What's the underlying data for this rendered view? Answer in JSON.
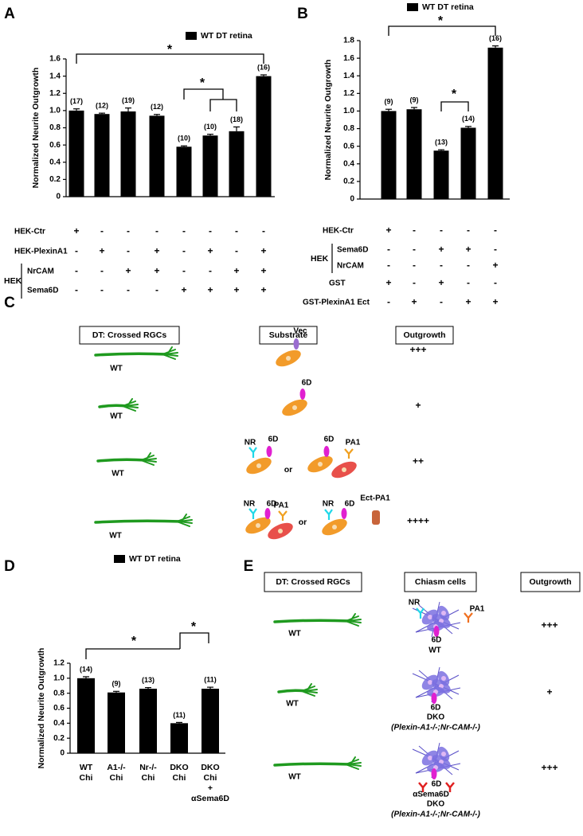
{
  "chart_data": [
    {
      "type": "bar",
      "panel_label": "A",
      "ylabel": "Normalized Neurite Outgrowth",
      "series": [
        {
          "name": "WT DT retina",
          "color": "#000000",
          "values": [
            1.0,
            0.96,
            0.99,
            0.94,
            0.58,
            0.71,
            0.76,
            1.4
          ],
          "errors": [
            0.02,
            0.01,
            0.04,
            0.015,
            0.01,
            0.015,
            0.05,
            0.015
          ]
        }
      ],
      "n_labels": [
        "(17)",
        "(12)",
        "(19)",
        "(12)",
        "(10)",
        "(10)",
        "(18)",
        "(16)"
      ],
      "ylim": [
        0,
        1.6
      ],
      "yticks": [
        0,
        0.2,
        0.4,
        0.6,
        0.8,
        {
          "value": 1,
          "label": "1.0"
        },
        1.2,
        1.4,
        1.6
      ],
      "annotations": [
        "*",
        "*"
      ],
      "condition_rows": [
        {
          "label": "HEK-Ctr",
          "marks": [
            "+",
            "-",
            "-",
            "-",
            "-",
            "-",
            "-",
            "-"
          ]
        },
        {
          "label": "HEK-PlexinA1",
          "marks": [
            "-",
            "+",
            "-",
            "+",
            "-",
            "+",
            "-",
            "+"
          ]
        },
        {
          "label": "NrCAM",
          "marks": [
            "-",
            "-",
            "+",
            "+",
            "-",
            "-",
            "+",
            "+"
          ]
        },
        {
          "label": "Sema6D",
          "marks": [
            "-",
            "-",
            "-",
            "-",
            "+",
            "+",
            "+",
            "+"
          ]
        }
      ],
      "group_label": "HEK"
    },
    {
      "type": "bar",
      "panel_label": "B",
      "ylabel": "Normalized Neurite Outgrowth",
      "series": [
        {
          "name": "WT DT retina",
          "color": "#000000",
          "values": [
            1.0,
            1.02,
            0.55,
            0.81,
            1.72
          ],
          "errors": [
            0.02,
            0.02,
            0.01,
            0.015,
            0.02
          ]
        }
      ],
      "n_labels": [
        "(9)",
        "(9)",
        "(13)",
        "(14)",
        "(16)"
      ],
      "ylim": [
        0,
        1.8
      ],
      "yticks": [
        0,
        0.2,
        0.4,
        0.6,
        0.8,
        {
          "value": 1,
          "label": "1.0"
        },
        1.2,
        1.4,
        1.6,
        1.8
      ],
      "annotations": [
        "*",
        "*"
      ],
      "condition_rows": [
        {
          "label": "HEK-Ctr",
          "marks": [
            "+",
            "-",
            "-",
            "-",
            "-"
          ]
        },
        {
          "label": "Sema6D",
          "marks": [
            "-",
            "-",
            "+",
            "+",
            "-"
          ]
        },
        {
          "label": "NrCAM",
          "marks": [
            "-",
            "-",
            "-",
            "-",
            "+"
          ]
        },
        {
          "label": "GST",
          "marks": [
            "+",
            "-",
            "+",
            "-",
            "-"
          ]
        },
        {
          "label": "GST-PlexinA1 Ect",
          "marks": [
            "-",
            "+",
            "-",
            "+",
            "+"
          ]
        }
      ],
      "group_label": "HEK"
    },
    {
      "type": "bar",
      "panel_label": "D",
      "ylabel": "Normalized Neurite Outgrowth",
      "categories": [
        [
          "WT",
          "Chi"
        ],
        [
          "A1-/-",
          "Chi"
        ],
        [
          "Nr-/-",
          "Chi"
        ],
        [
          "DKO",
          "Chi"
        ],
        [
          "DKO",
          "Chi",
          "+",
          "αSema6D"
        ]
      ],
      "series": [
        {
          "name": "WT DT retina",
          "color": "#000000",
          "values": [
            1.0,
            0.81,
            0.86,
            0.4,
            0.86
          ],
          "errors": [
            0.02,
            0.015,
            0.015,
            0.01,
            0.02
          ]
        }
      ],
      "n_labels": [
        "(14)",
        "(9)",
        "(13)",
        "(11)",
        "(11)"
      ],
      "ylim": [
        0,
        1.2
      ],
      "yticks": [
        0,
        0.2,
        0.4,
        0.6,
        0.8,
        {
          "value": 1,
          "label": "1.0"
        },
        1.2
      ],
      "annotations": [
        "*",
        "*"
      ]
    }
  ],
  "panel_c": {
    "label": "C",
    "headers": [
      "DT: Crossed RGCs",
      "Substrate",
      "Outgrowth"
    ],
    "rows": [
      {
        "axon": "WT",
        "substrate": [
          "Vec"
        ],
        "outgrowth": "+++"
      },
      {
        "axon": "WT",
        "substrate": [
          "6D"
        ],
        "outgrowth": "+"
      },
      {
        "axon": "WT",
        "substrate": [
          "NR",
          "6D",
          "or",
          "6D",
          "PA1"
        ],
        "outgrowth": "++"
      },
      {
        "axon": "WT",
        "substrate": [
          "NR",
          "6D",
          "PA1",
          "or",
          "NR",
          "6D",
          "Ect-PA1"
        ],
        "outgrowth": "++++"
      }
    ]
  },
  "panel_e": {
    "label": "E",
    "headers": [
      "DT: Crossed RGCs",
      "Chiasm cells",
      "Outgrowth"
    ],
    "rows": [
      {
        "axon": "WT",
        "cells": [
          "NR",
          "PA1",
          "6D",
          "WT"
        ],
        "outgrowth": "+++"
      },
      {
        "axon": "WT",
        "cells": [
          "6D",
          "DKO",
          "(Plexin-A1-/-;Nr-CAM-/-)"
        ],
        "outgrowth": "+"
      },
      {
        "axon": "WT",
        "cells": [
          "6D",
          "αSema6D",
          "DKO",
          "(Plexin-A1-/-;Nr-CAM-/-)"
        ],
        "outgrowth": "+++"
      }
    ]
  }
}
